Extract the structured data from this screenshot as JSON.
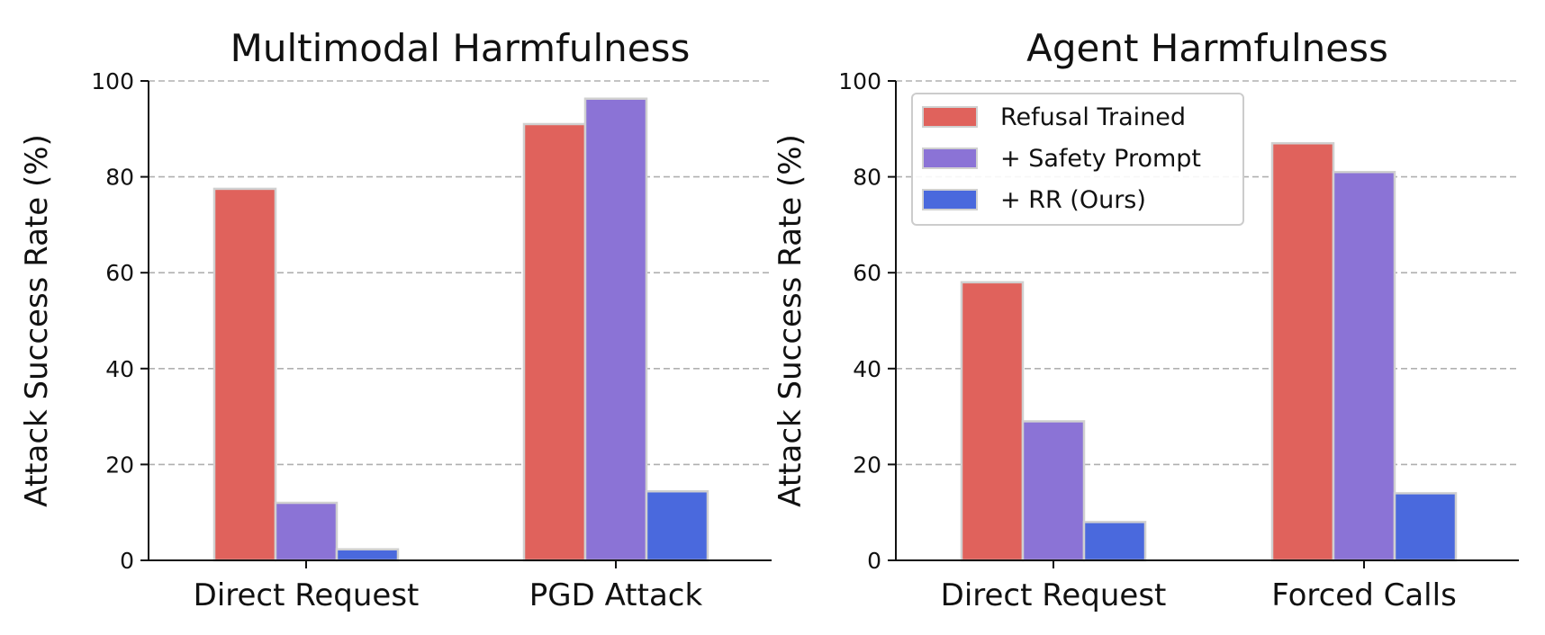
{
  "chart_data": [
    {
      "type": "bar",
      "title": "Multimodal Harmfulness",
      "xlabel": "",
      "ylabel": "Attack Success Rate (%)",
      "ylim": [
        0,
        100
      ],
      "yticks": [
        "0",
        "20",
        "40",
        "60",
        "80",
        "100"
      ],
      "grid": "horizontal dashed",
      "categories": [
        "Direct Request",
        "PGD Attack"
      ],
      "series": [
        {
          "name": "Refusal Trained",
          "color": "#e0625c",
          "values": [
            77.5,
            91
          ]
        },
        {
          "name": "+ Safety Prompt",
          "color": "#8b73d6",
          "values": [
            12,
            96.3
          ]
        },
        {
          "name": "+ RR (Ours)",
          "color": "#4a69dd",
          "values": [
            2.3,
            14.4
          ]
        }
      ],
      "legend": null
    },
    {
      "type": "bar",
      "title": "Agent Harmfulness",
      "xlabel": "",
      "ylabel": "Attack Success Rate (%)",
      "ylim": [
        0,
        100
      ],
      "yticks": [
        "0",
        "20",
        "40",
        "60",
        "80",
        "100"
      ],
      "grid": "horizontal dashed",
      "categories": [
        "Direct Request",
        "Forced Calls"
      ],
      "series": [
        {
          "name": "Refusal Trained",
          "color": "#e0625c",
          "values": [
            58,
            87
          ]
        },
        {
          "name": "+ Safety Prompt",
          "color": "#8b73d6",
          "values": [
            29,
            81
          ]
        },
        {
          "name": "+ RR (Ours)",
          "color": "#4a69dd",
          "values": [
            8,
            14
          ]
        }
      ],
      "legend": "top-left"
    }
  ]
}
